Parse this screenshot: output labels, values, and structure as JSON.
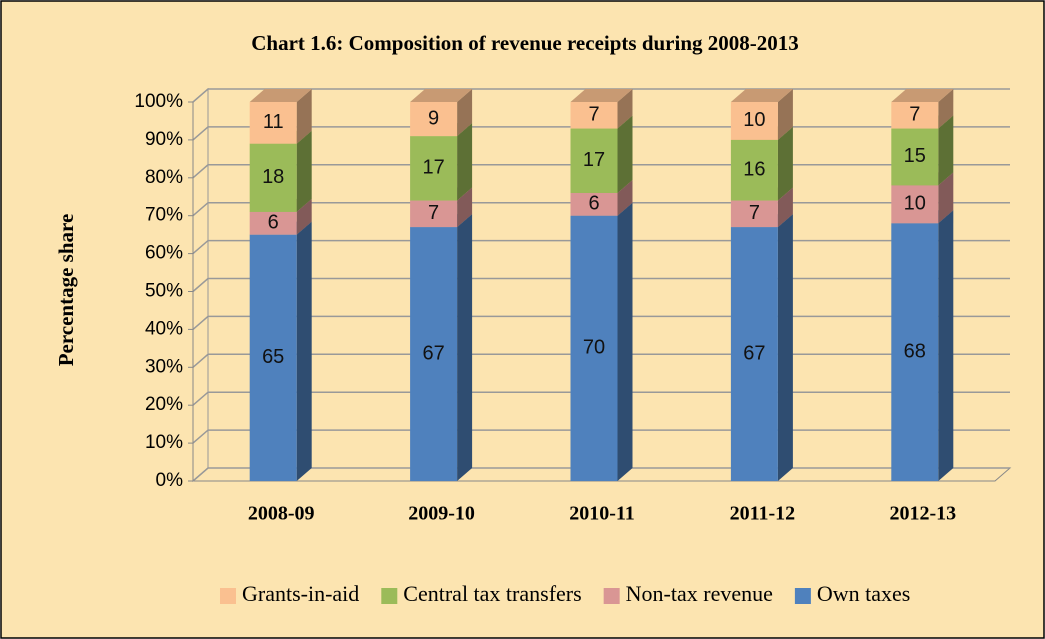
{
  "chart_data": {
    "type": "stacked_bar_3d",
    "title": "Chart 1.6: Composition of revenue receipts during 2008-2013",
    "y_label": "Percentage share",
    "categories": [
      "2008-09",
      "2009-10",
      "2010-11",
      "2011-12",
      "2012-13"
    ],
    "series": [
      {
        "name": "Own taxes",
        "color": "#4f81bd",
        "values": [
          65,
          67,
          70,
          67,
          68
        ]
      },
      {
        "name": "Non-tax revenue",
        "color": "#d99694",
        "values": [
          6,
          7,
          6,
          7,
          10
        ]
      },
      {
        "name": "Central tax transfers",
        "color": "#9bbb59",
        "values": [
          18,
          17,
          17,
          16,
          15
        ]
      },
      {
        "name": "Grants-in-aid",
        "color": "#fac090",
        "values": [
          11,
          9,
          7,
          10,
          7
        ]
      }
    ],
    "ylim": [
      0,
      100
    ],
    "yticks": [
      {
        "value": 0,
        "label": "0%"
      },
      {
        "value": 10,
        "label": "10%"
      },
      {
        "value": 20,
        "label": "20%"
      },
      {
        "value": 30,
        "label": "30%"
      },
      {
        "value": 40,
        "label": "40%"
      },
      {
        "value": 50,
        "label": "50%"
      },
      {
        "value": 60,
        "label": "60%"
      },
      {
        "value": 70,
        "label": "70%"
      },
      {
        "value": 80,
        "label": "80%"
      },
      {
        "value": 90,
        "label": "90%"
      },
      {
        "value": 100,
        "label": "100%"
      }
    ],
    "grid": true,
    "legend": "bottom"
  }
}
